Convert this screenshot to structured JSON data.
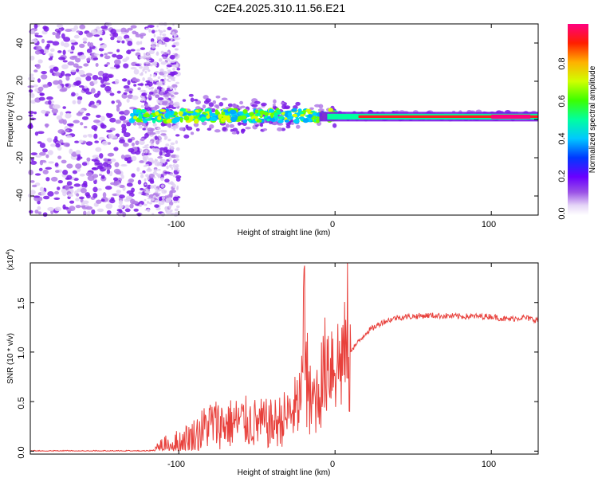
{
  "chart_data": [
    {
      "type": "heatmap",
      "title": "C2E4.2025.310.11.56.E21",
      "xlabel": "Height of straight line (km)",
      "ylabel": "Frequency (Hz)",
      "xlim": [
        -195,
        130
      ],
      "ylim": [
        -50,
        50
      ],
      "xticks": [
        "-100",
        "0",
        "100"
      ],
      "yticks": [
        "40",
        "20",
        "0",
        "-20",
        "-40"
      ],
      "colorbar": {
        "label": "Normalized spectral amplitude",
        "range": [
          0,
          1
        ],
        "ticks": [
          "0.0",
          "0.2",
          "0.4",
          "0.6",
          "0.8"
        ]
      },
      "description_points": [
        {
          "x": -100,
          "y": 5
        },
        {
          "x": -60,
          "y": 2
        },
        {
          "x": -20,
          "y": 1
        },
        {
          "x": 0,
          "y": 3
        },
        {
          "x": 100,
          "y": 1
        }
      ]
    },
    {
      "type": "line",
      "xlabel": "Height of straight line (km)",
      "ylabel": "SNR (10 * v/v)",
      "y_multiplier": "(x10",
      "y_multiplier_exp": "4",
      "y_multiplier_close": ")",
      "xlim": [
        -195,
        130
      ],
      "ylim": [
        -0.03,
        1.9
      ],
      "xticks": [
        "-100",
        "0",
        "100"
      ],
      "yticks": [
        "0.0",
        "0.5",
        "1.0",
        "1.5"
      ],
      "line_color": "#e8413c",
      "x": [
        -195,
        -150,
        -120,
        -110,
        -100,
        -90,
        -80,
        -70,
        -60,
        -50,
        -40,
        -30,
        -22,
        -20,
        -18,
        -12,
        -8,
        -5,
        0,
        3,
        5,
        7,
        8,
        9,
        10,
        15,
        20,
        30,
        40,
        60,
        80,
        100,
        110,
        120,
        130
      ],
      "values": [
        0.0,
        0.0,
        0.0,
        0.02,
        0.07,
        0.15,
        0.28,
        0.27,
        0.3,
        0.28,
        0.27,
        0.35,
        0.5,
        1.45,
        0.5,
        0.55,
        0.72,
        0.95,
        0.92,
        0.88,
        1.0,
        0.9,
        1.75,
        0.25,
        1.02,
        1.1,
        1.2,
        1.3,
        1.35,
        1.37,
        1.36,
        1.36,
        1.33,
        1.35,
        1.32
      ]
    }
  ]
}
